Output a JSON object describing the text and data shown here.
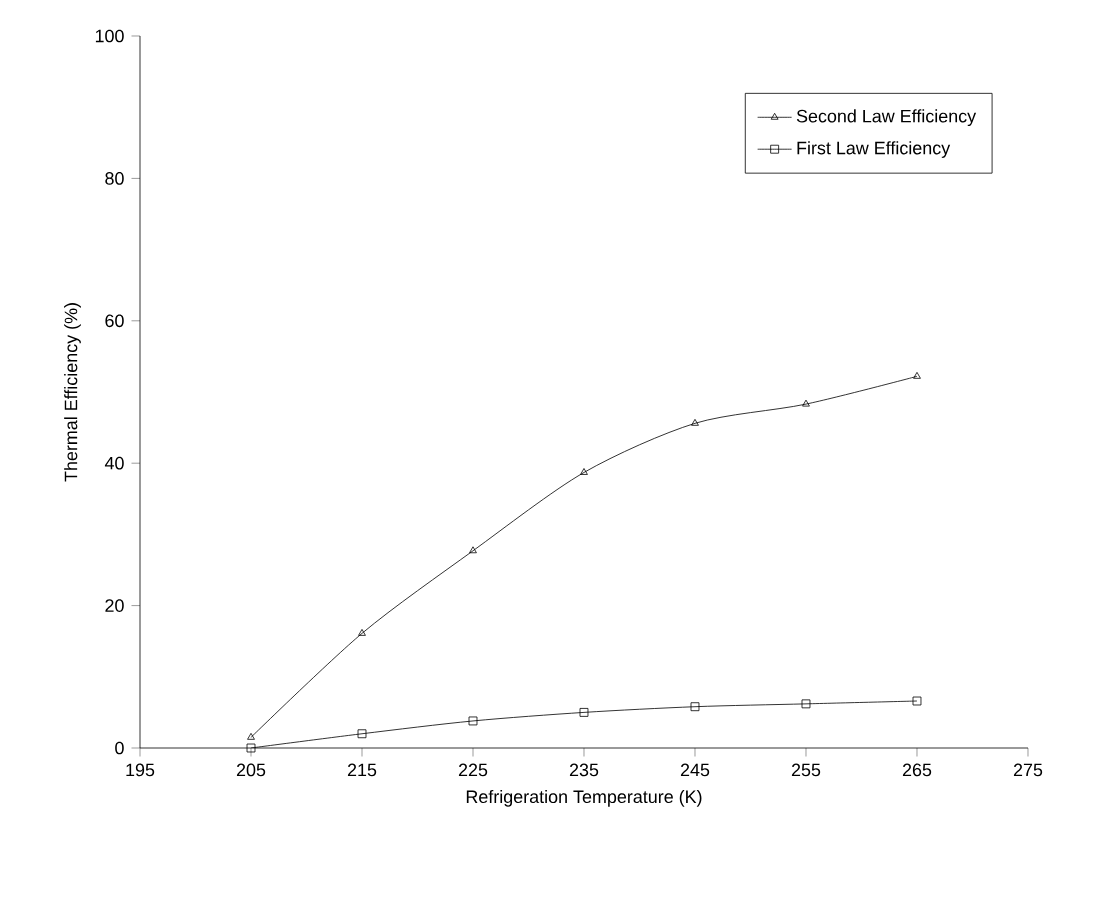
{
  "chart_data": {
    "type": "line",
    "xlabel": "Refrigeration Temperature (K)",
    "ylabel": "Thermal Efficiency (%)",
    "x": [
      205,
      215,
      225,
      235,
      245,
      255,
      265
    ],
    "series": [
      {
        "name": "Second Law Efficiency",
        "color": "#000000",
        "marker": "triangle",
        "values": [
          1.5,
          16.1,
          27.7,
          38.7,
          45.6,
          48.3,
          52.2
        ]
      },
      {
        "name": "First Law Efficiency",
        "color": "#000000",
        "marker": "square",
        "values": [
          0,
          2.0,
          3.8,
          5.0,
          5.8,
          6.2,
          6.6
        ]
      }
    ],
    "xlim": [
      195,
      275
    ],
    "xticks": [
      195,
      205,
      215,
      225,
      235,
      245,
      255,
      265,
      275
    ],
    "ylim": [
      0,
      100
    ],
    "yticks": [
      0,
      20,
      40,
      60,
      80,
      100
    ],
    "legend": "top right",
    "line_style": "solid",
    "grid": false
  }
}
